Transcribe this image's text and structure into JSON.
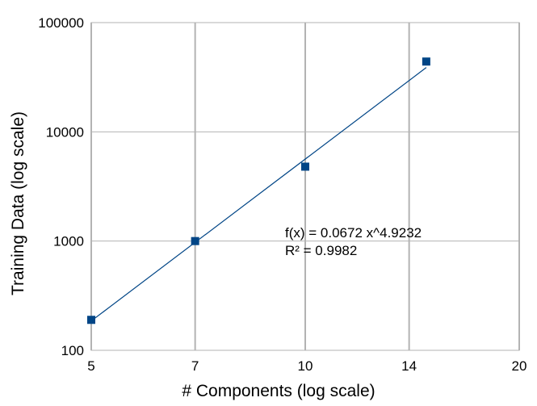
{
  "chart_data": {
    "type": "scatter",
    "title": "",
    "xlabel": "# Components (log scale)",
    "ylabel": "Training Data (log scale)",
    "x_scale": "log",
    "y_scale": "log",
    "xlim": [
      5,
      20
    ],
    "ylim": [
      100,
      100000
    ],
    "x_ticks": [
      5,
      7,
      10,
      14,
      20
    ],
    "y_ticks": [
      100,
      1000,
      10000,
      100000
    ],
    "x_tick_labels": [
      "5",
      "7",
      "10",
      "14",
      "20"
    ],
    "y_tick_labels": [
      "100",
      "1000",
      "10000",
      "100000"
    ],
    "grid": true,
    "legend": "none",
    "marker_color": "#004586",
    "line_color": "#004586",
    "series": [
      {
        "x": [
          5,
          7,
          10,
          14.8
        ],
        "y": [
          190,
          1000,
          4800,
          44000
        ]
      }
    ],
    "trendline": {
      "kind": "power",
      "coefficient": 0.0672,
      "exponent": 4.9232,
      "x_range": [
        5,
        14.8
      ]
    },
    "annotations": [
      "f(x) = 0.0672 x^4.9232",
      "R² = 0.9982"
    ]
  }
}
